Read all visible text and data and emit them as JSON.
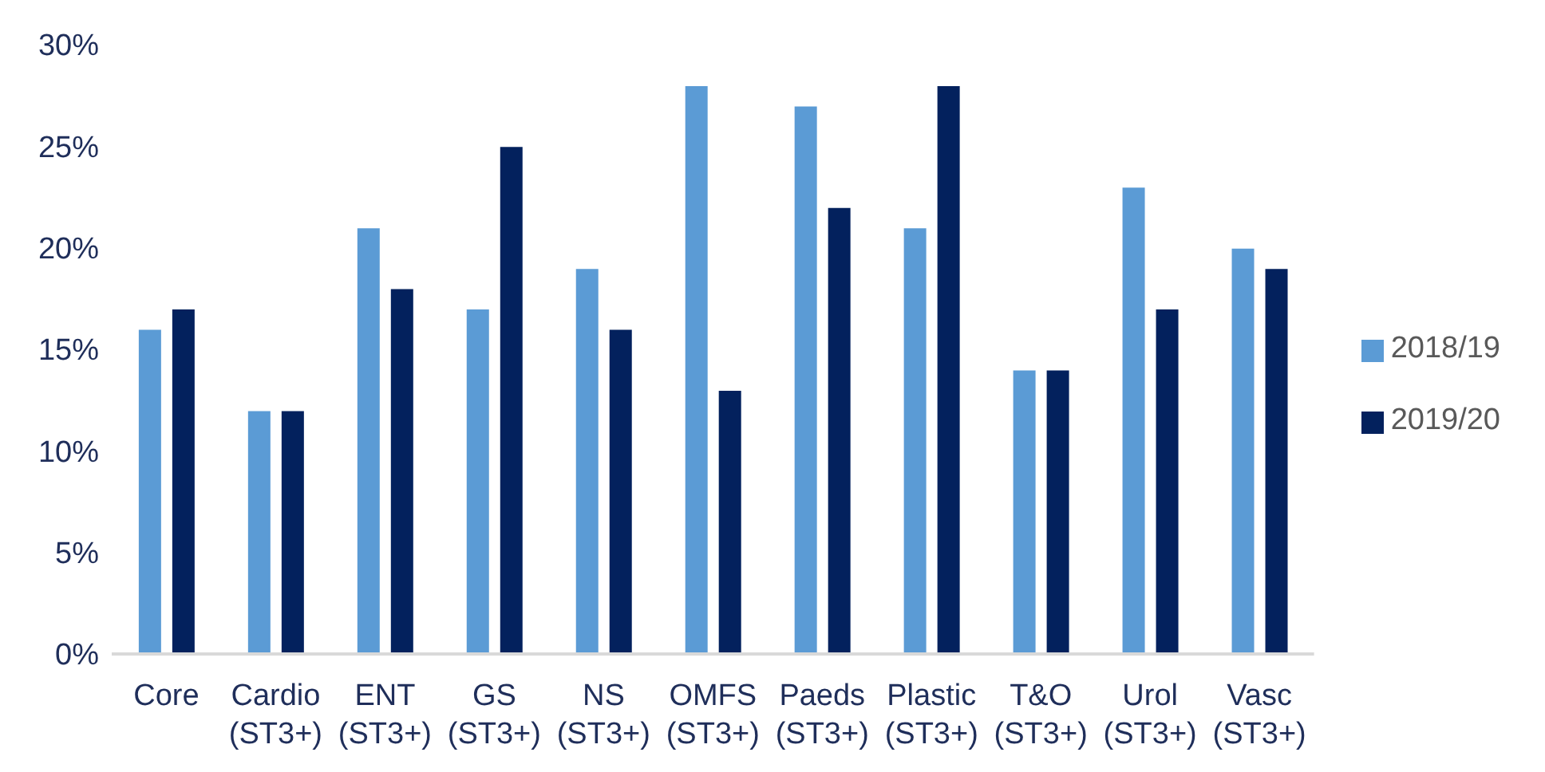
{
  "chart_data": {
    "type": "bar",
    "categories": [
      "Core",
      "Cardio\n(ST3+)",
      "ENT\n(ST3+)",
      "GS\n(ST3+)",
      "NS\n(ST3+)",
      "OMFS\n(ST3+)",
      "Paeds\n(ST3+)",
      "Plastic\n(ST3+)",
      "T&O\n(ST3+)",
      "Urol\n(ST3+)",
      "Vasc\n(ST3+)"
    ],
    "series": [
      {
        "name": "2018/19",
        "color": "#5b9bd5",
        "values": [
          16,
          12,
          21,
          17,
          19,
          28,
          27,
          21,
          14,
          23,
          20
        ]
      },
      {
        "name": "2019/20",
        "color": "#03215d",
        "values": [
          17,
          12,
          18,
          25,
          16,
          13,
          22,
          28,
          14,
          17,
          19
        ]
      }
    ],
    "ylim": [
      0,
      30
    ],
    "yticks": [
      {
        "value": 0,
        "label": "0%"
      },
      {
        "value": 5,
        "label": "5%"
      },
      {
        "value": 10,
        "label": "10%"
      },
      {
        "value": 15,
        "label": "15%"
      },
      {
        "value": 20,
        "label": "20%"
      },
      {
        "value": 25,
        "label": "25%"
      },
      {
        "value": 30,
        "label": "30%"
      }
    ],
    "grid": false,
    "legend": "right"
  }
}
